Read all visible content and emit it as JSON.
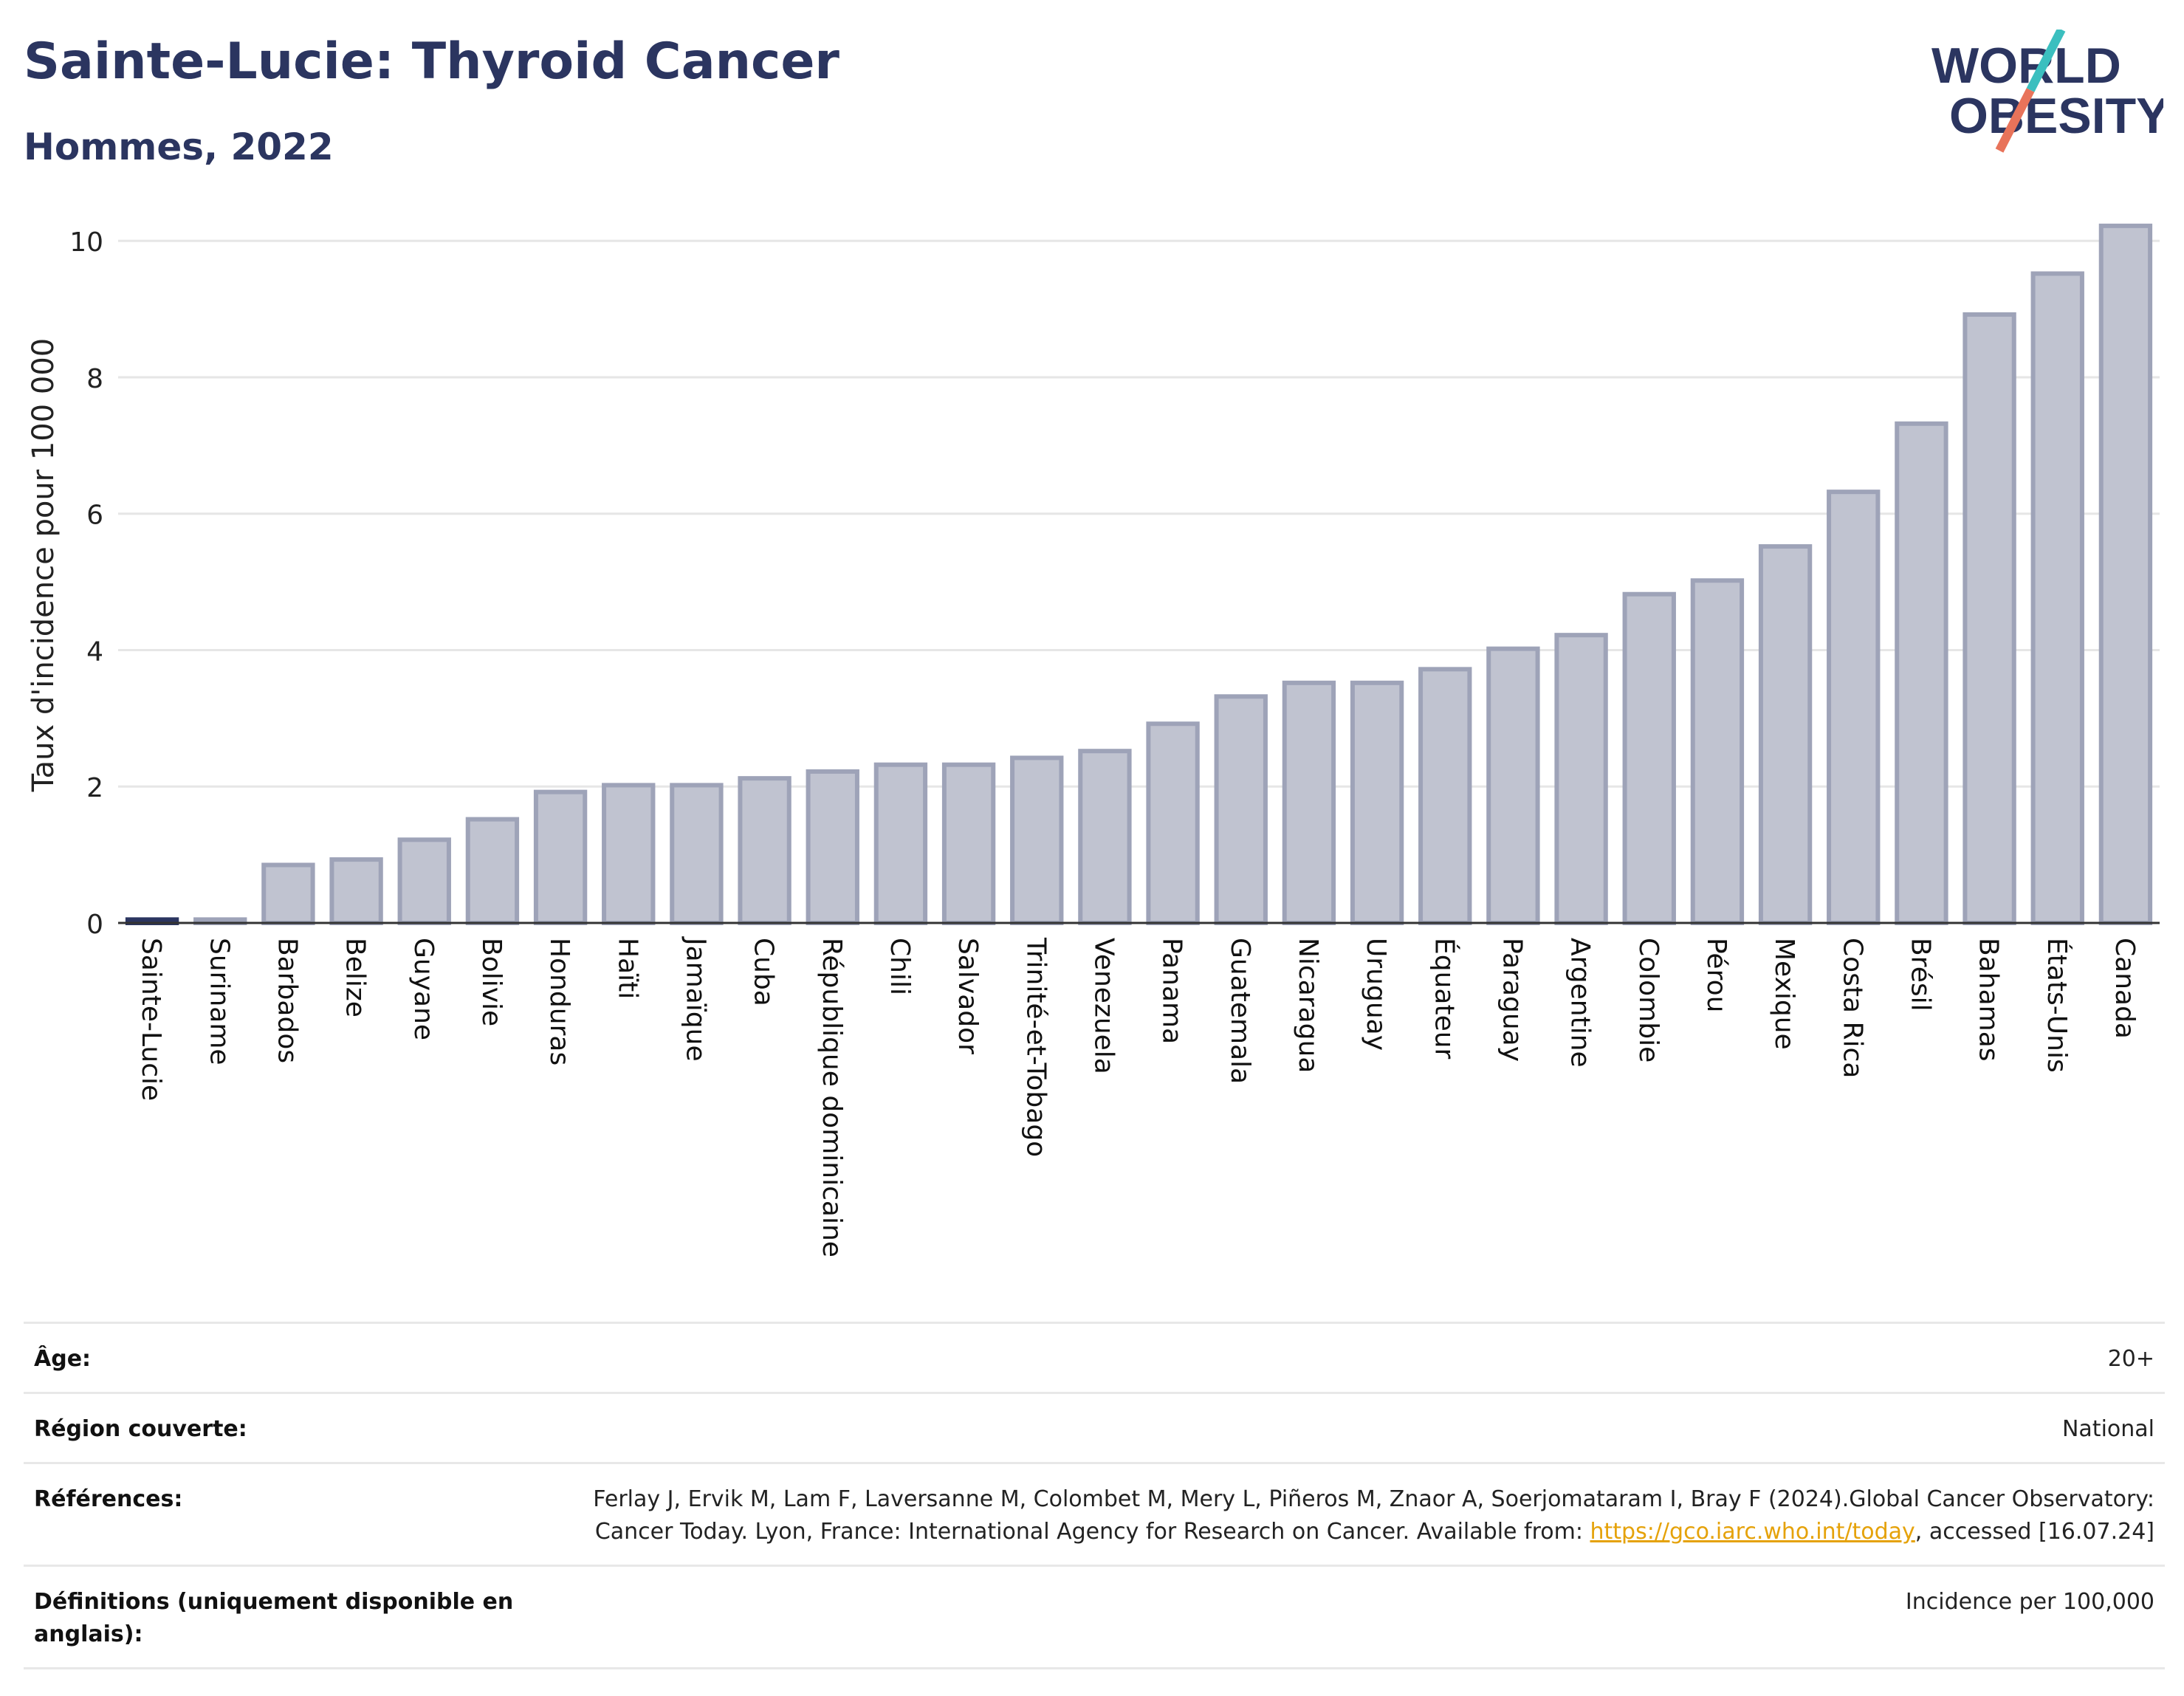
{
  "header": {
    "title": "Sainte-Lucie: Thyroid Cancer",
    "subtitle": "Hommes, 2022"
  },
  "logo": {
    "line1": "WORLD",
    "line2": "OBESITY"
  },
  "colors": {
    "bar": "#c0c3d0",
    "bar_stroke": "#9ea3b8",
    "highlight": "#2b3560",
    "title": "#2b3560",
    "grid": "#e6e6e6",
    "link": "#e5a20a",
    "logo_teal": "#3bbfbf",
    "logo_coral": "#e8735a"
  },
  "chart_data": {
    "type": "bar",
    "title": "",
    "xlabel": "",
    "ylabel": "Taux d'incidence pour 100 000",
    "ylim": [
      0,
      10.5
    ],
    "yticks": [
      0,
      2,
      4,
      6,
      8,
      10
    ],
    "grid": true,
    "highlight": "Sainte-Lucie",
    "categories": [
      "Sainte-Lucie",
      "Suriname",
      "Barbados",
      "Belize",
      "Guyane",
      "Bolivie",
      "Honduras",
      "Haïti",
      "Jamaïque",
      "Cuba",
      "République dominicaine",
      "Chili",
      "Salvador",
      "Trinité-et-Tobago",
      "Venezuela",
      "Panama",
      "Guatemala",
      "Nicaragua",
      "Uruguay",
      "Équateur",
      "Paraguay",
      "Argentine",
      "Colombie",
      "Pérou",
      "Mexique",
      "Costa Rica",
      "Brésil",
      "Bahamas",
      "États-Unis",
      "Canada"
    ],
    "values": [
      0.05,
      0.05,
      0.85,
      0.93,
      1.22,
      1.52,
      1.92,
      2.02,
      2.02,
      2.12,
      2.22,
      2.32,
      2.32,
      2.42,
      2.52,
      2.92,
      3.32,
      3.52,
      3.52,
      3.72,
      4.02,
      4.22,
      4.82,
      5.02,
      5.52,
      6.32,
      7.32,
      8.92,
      9.52,
      10.22
    ]
  },
  "info": {
    "age_label": "Âge:",
    "age_value": "20+",
    "region_label": "Région couverte:",
    "region_value": "National",
    "refs_label": "Références:",
    "refs_text": "Ferlay J, Ervik M, Lam F, Laversanne M, Colombet M, Mery L, Piñeros M, Znaor A, Soerjomataram I, Bray F (2024).Global Cancer Observatory: Cancer Today. Lyon, France: International Agency for Research on Cancer. Available from:",
    "refs_link": "https://gco.iarc.who.int/today",
    "refs_tail": ", accessed [16.07.24]",
    "defs_label": "Définitions (uniquement disponible en anglais):",
    "defs_value": "Incidence per 100,000"
  }
}
